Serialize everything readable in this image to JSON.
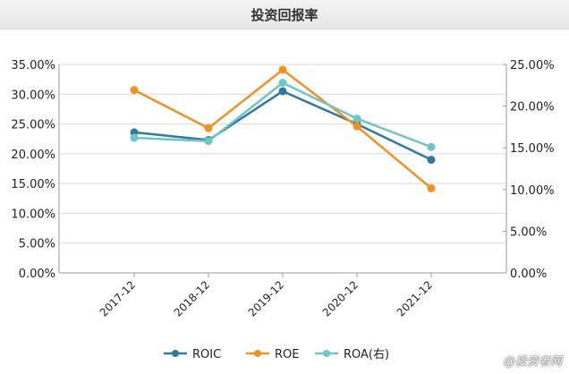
{
  "chart_data": {
    "type": "line",
    "title": "投资回报率",
    "categories": [
      "2017-12",
      "2018-12",
      "2019-12",
      "2020-12",
      "2021-12"
    ],
    "left_axis": {
      "ylim": [
        0,
        35
      ],
      "ticks": [
        "0.00%",
        "5.00%",
        "10.00%",
        "15.00%",
        "20.00%",
        "25.00%",
        "30.00%",
        "35.00%"
      ]
    },
    "right_axis": {
      "ylim": [
        0,
        25
      ],
      "ticks": [
        "0.00%",
        "5.00%",
        "10.00%",
        "15.00%",
        "20.00%",
        "25.00%"
      ]
    },
    "series": [
      {
        "name": "ROIC",
        "axis": "left",
        "color": "#2e7aa1",
        "values": [
          23.6,
          22.3,
          30.5,
          25.0,
          19.0
        ]
      },
      {
        "name": "ROE",
        "axis": "left",
        "color": "#f39120",
        "values": [
          30.7,
          24.3,
          34.1,
          24.6,
          14.2
        ]
      },
      {
        "name": "ROA(右)",
        "axis": "right",
        "color": "#6cc7c4",
        "values": [
          16.2,
          15.8,
          22.8,
          18.5,
          15.1
        ]
      }
    ],
    "grid": true,
    "legend": "bottom"
  },
  "watermark": "@投资者网"
}
